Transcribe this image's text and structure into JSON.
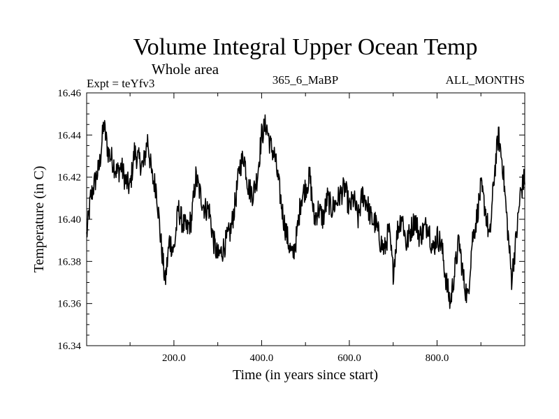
{
  "chart_data": {
    "type": "line",
    "title": "Volume Integral Upper Ocean Temp",
    "subtitle": "Whole area",
    "experiment_label": "Expt = teYfv3",
    "run_label": "365_6_MaBP",
    "months_label": "ALL_MONTHS",
    "xlabel": "Time (in years since start)",
    "ylabel": "Temperature (in C)",
    "xlim": [
      1,
      1000
    ],
    "ylim": [
      16.34,
      16.46
    ],
    "x_ticks": [
      200,
      400,
      600,
      800
    ],
    "x_tick_labels": [
      "200.0",
      "400.0",
      "600.0",
      "800.0"
    ],
    "y_ticks": [
      16.34,
      16.36,
      16.38,
      16.4,
      16.42,
      16.44,
      16.46
    ],
    "y_tick_labels": [
      "16.34",
      "16.36",
      "16.38",
      "16.40",
      "16.42",
      "16.44",
      "16.46"
    ],
    "series": [
      {
        "name": "Volume Integral Upper Ocean Temp",
        "color": "#000000",
        "x": [
          1,
          10,
          20,
          30,
          40,
          50,
          60,
          70,
          80,
          90,
          100,
          110,
          120,
          130,
          140,
          150,
          160,
          170,
          180,
          190,
          200,
          210,
          220,
          230,
          240,
          250,
          260,
          270,
          280,
          290,
          300,
          310,
          320,
          330,
          340,
          350,
          360,
          370,
          380,
          390,
          400,
          410,
          420,
          430,
          440,
          450,
          460,
          470,
          480,
          490,
          500,
          510,
          520,
          530,
          540,
          550,
          560,
          570,
          580,
          590,
          600,
          610,
          620,
          630,
          640,
          650,
          660,
          670,
          680,
          690,
          700,
          710,
          720,
          730,
          740,
          750,
          760,
          770,
          780,
          790,
          800,
          810,
          820,
          830,
          840,
          850,
          860,
          870,
          880,
          890,
          900,
          910,
          920,
          930,
          940,
          950,
          960,
          970,
          980,
          990,
          1000
        ],
        "values": [
          16.392,
          16.41,
          16.418,
          16.425,
          16.445,
          16.432,
          16.428,
          16.422,
          16.425,
          16.418,
          16.415,
          16.432,
          16.428,
          16.425,
          16.438,
          16.42,
          16.415,
          16.39,
          16.37,
          16.39,
          16.385,
          16.405,
          16.398,
          16.395,
          16.4,
          16.42,
          16.412,
          16.405,
          16.405,
          16.39,
          16.382,
          16.385,
          16.39,
          16.395,
          16.408,
          16.425,
          16.43,
          16.415,
          16.412,
          16.42,
          16.44,
          16.445,
          16.435,
          16.43,
          16.415,
          16.4,
          16.39,
          16.382,
          16.392,
          16.41,
          16.415,
          16.42,
          16.4,
          16.405,
          16.4,
          16.41,
          16.405,
          16.408,
          16.412,
          16.415,
          16.405,
          16.41,
          16.4,
          16.412,
          16.408,
          16.4,
          16.398,
          16.39,
          16.385,
          16.395,
          16.375,
          16.395,
          16.402,
          16.388,
          16.395,
          16.4,
          16.392,
          16.395,
          16.398,
          16.385,
          16.392,
          16.388,
          16.372,
          16.36,
          16.375,
          16.39,
          16.372,
          16.362,
          16.39,
          16.4,
          16.415,
          16.405,
          16.39,
          16.42,
          16.44,
          16.425,
          16.398,
          16.372,
          16.39,
          16.412,
          16.42
        ]
      }
    ]
  }
}
